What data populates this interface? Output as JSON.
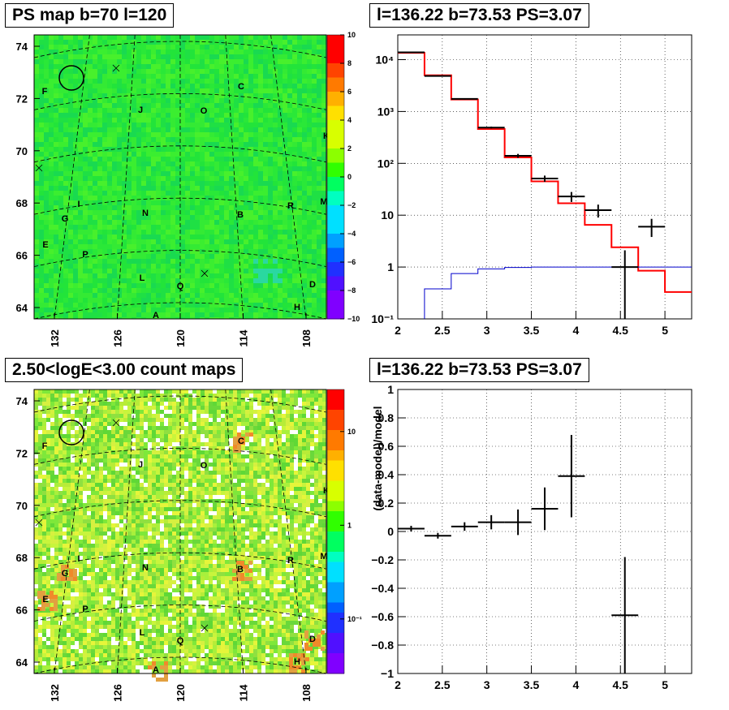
{
  "chart_data": [
    {
      "type": "heatmap",
      "title": "PS map b=70 l=120",
      "y_ticks": [
        "64",
        "66",
        "68",
        "70",
        "72",
        "74"
      ],
      "x_ticks": [
        "132",
        "126",
        "120",
        "114",
        "108"
      ],
      "colorbar_ticks": [
        "10",
        "8",
        "6",
        "4",
        "2",
        "0",
        "−2",
        "−4",
        "−6",
        "−8",
        "−10"
      ],
      "colorbar_range": [
        -10,
        10
      ],
      "source_labels": [
        "F",
        "J",
        "O",
        "C",
        "K",
        "I",
        "N",
        "B",
        "R",
        "M",
        "G",
        "E",
        "P",
        "L",
        "Q",
        "D",
        "H",
        "A"
      ],
      "grid": true
    },
    {
      "type": "line",
      "title": "l=136.22 b=73.53 PS=3.07",
      "y_scale": "log",
      "xlim": [
        2,
        5.3
      ],
      "ylim": [
        0.1,
        30000
      ],
      "x_ticks": [
        "2",
        "2.5",
        "3",
        "3.5",
        "4",
        "4.5",
        "5"
      ],
      "y_ticks": [
        "10⁻¹",
        "1",
        "10",
        "10²",
        "10³",
        "10⁴"
      ],
      "bin_edges": [
        2.0,
        2.3,
        2.6,
        2.9,
        3.2,
        3.5,
        3.8,
        4.1,
        4.4,
        4.7,
        5.0,
        5.3
      ],
      "series": [
        {
          "name": "",
          "color": "#ff0000",
          "style": "step",
          "values": [
            13500,
            5000,
            1700,
            460,
            130,
            45,
            17,
            6.5,
            2.4,
            0.85,
            0.33
          ]
        },
        {
          "name": "",
          "color": "#0000cc",
          "style": "step",
          "values": [
            0.06,
            0.38,
            0.75,
            0.92,
            0.98,
            1.0,
            1.0,
            1.0,
            1.0,
            1.0,
            1.0
          ]
        },
        {
          "name": "",
          "color": "#000000",
          "style": "errorbar",
          "points": [
            {
              "x": 2.15,
              "y": 13800,
              "xerr": 0.15,
              "ylo": 13500,
              "yhi": 14100
            },
            {
              "x": 2.45,
              "y": 4850,
              "xerr": 0.15,
              "ylo": 4700,
              "yhi": 5000
            },
            {
              "x": 2.75,
              "y": 1750,
              "xerr": 0.15,
              "ylo": 1700,
              "yhi": 1800
            },
            {
              "x": 3.05,
              "y": 490,
              "xerr": 0.15,
              "ylo": 470,
              "yhi": 510
            },
            {
              "x": 3.35,
              "y": 140,
              "xerr": 0.15,
              "ylo": 128,
              "yhi": 152
            },
            {
              "x": 3.65,
              "y": 51,
              "xerr": 0.15,
              "ylo": 44,
              "yhi": 58
            },
            {
              "x": 3.95,
              "y": 23,
              "xerr": 0.15,
              "ylo": 18,
              "yhi": 28
            },
            {
              "x": 4.25,
              "y": 12.5,
              "xerr": 0.15,
              "ylo": 9,
              "yhi": 16
            },
            {
              "x": 4.55,
              "y": 1.0,
              "xerr": 0.15,
              "ylo": 0.1,
              "yhi": 2.1
            },
            {
              "x": 4.85,
              "y": 6.0,
              "xerr": 0.15,
              "ylo": 3.8,
              "yhi": 8.5
            }
          ]
        }
      ],
      "grid": true
    },
    {
      "type": "heatmap",
      "title": "2.50<logE<3.00 count maps",
      "y_ticks": [
        "64",
        "66",
        "68",
        "70",
        "72",
        "74"
      ],
      "x_ticks": [
        "132",
        "126",
        "120",
        "114",
        "108"
      ],
      "colorbar_ticks": [
        "10",
        "1",
        "10⁻¹"
      ],
      "colorbar_scale": "log",
      "source_labels": [
        "F",
        "J",
        "O",
        "C",
        "K",
        "I",
        "N",
        "B",
        "R",
        "M",
        "G",
        "E",
        "P",
        "L",
        "Q",
        "D",
        "H",
        "A"
      ],
      "grid": true
    },
    {
      "type": "scatter",
      "title": "l=136.22 b=73.53 PS=3.07",
      "ylabel": "(data-model)/model",
      "xlim": [
        2,
        5.3
      ],
      "ylim": [
        -1,
        1
      ],
      "x_ticks": [
        "2",
        "2.5",
        "3",
        "3.5",
        "4",
        "4.5",
        "5"
      ],
      "y_ticks": [
        "−1",
        "−0.8",
        "−0.6",
        "−0.4",
        "−0.2",
        "0",
        "0.2",
        "0.4",
        "0.6",
        "0.8",
        "1"
      ],
      "points": [
        {
          "x": 2.15,
          "y": 0.02,
          "xerr": 0.15,
          "yerr": 0.02
        },
        {
          "x": 2.45,
          "y": -0.03,
          "xerr": 0.15,
          "yerr": 0.02
        },
        {
          "x": 2.75,
          "y": 0.035,
          "xerr": 0.15,
          "yerr": 0.03
        },
        {
          "x": 3.05,
          "y": 0.065,
          "xerr": 0.15,
          "yerr": 0.05
        },
        {
          "x": 3.35,
          "y": 0.065,
          "xerr": 0.15,
          "yerr": 0.09
        },
        {
          "x": 3.65,
          "y": 0.16,
          "xerr": 0.15,
          "yerr": 0.15
        },
        {
          "x": 3.95,
          "y": 0.39,
          "xerr": 0.15,
          "yerr": 0.29
        },
        {
          "x": 4.55,
          "y": -0.59,
          "xerr": 0.15,
          "yerr": 0.41
        }
      ],
      "grid": true
    }
  ]
}
